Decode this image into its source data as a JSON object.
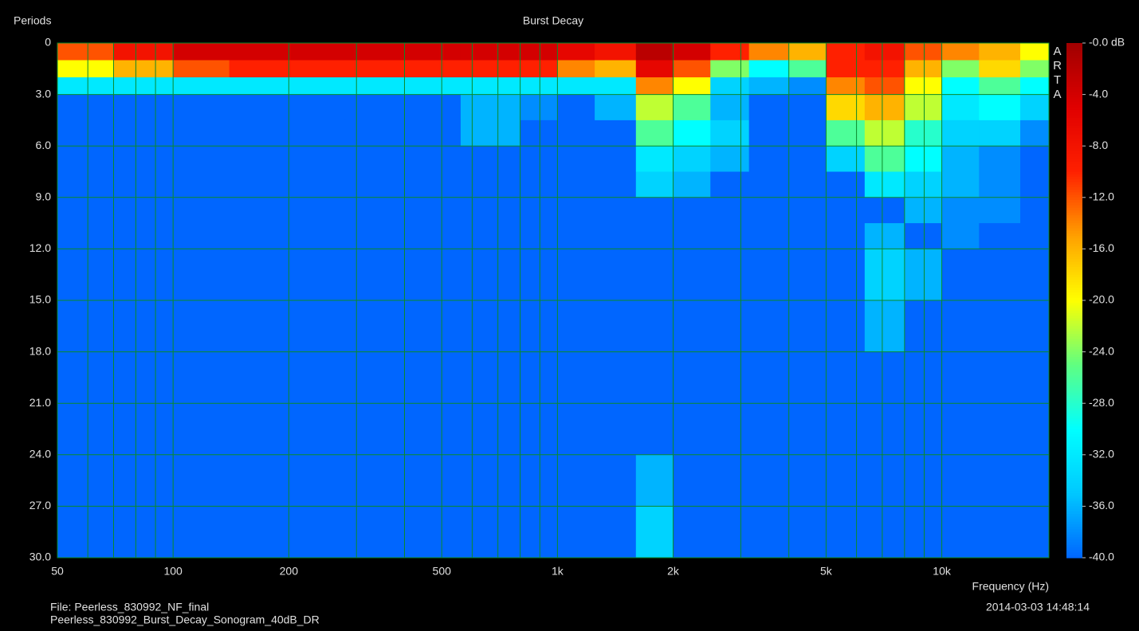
{
  "chart_data": {
    "type": "heatmap",
    "title": "Burst Decay",
    "ylabel": "Periods",
    "xlabel": "Frequency (Hz)",
    "watermark": "ARTA",
    "footer_file": "File: Peerless_830992_NF_final",
    "footer_name": "Peerless_830992_Burst_Decay_Sonogram_40dB_DR",
    "footer_date": "2014-03-03  14:48:14",
    "xlog": true,
    "xlim": [
      50,
      19000
    ],
    "xticks": [
      50,
      100,
      200,
      500,
      {
        "value": 1000,
        "label": "1k"
      },
      {
        "value": 2000,
        "label": "2k"
      },
      {
        "value": 5000,
        "label": "5k"
      },
      {
        "value": 10000,
        "label": "10k"
      }
    ],
    "xminorticks": [
      60,
      70,
      80,
      90,
      300,
      400,
      600,
      700,
      800,
      900,
      3000,
      4000,
      6000,
      7000,
      8000,
      9000
    ],
    "ylim": [
      0,
      30
    ],
    "yreversed": true,
    "yticks": [
      0,
      {
        "value": 3,
        "label": "3.0"
      },
      {
        "value": 6,
        "label": "6.0"
      },
      {
        "value": 9,
        "label": "9.0"
      },
      {
        "value": 12,
        "label": "12.0"
      },
      {
        "value": 15,
        "label": "15.0"
      },
      {
        "value": 18,
        "label": "18.0"
      },
      {
        "value": 21,
        "label": "21.0"
      },
      {
        "value": 24,
        "label": "24.0"
      },
      {
        "value": 27,
        "label": "27.0"
      },
      {
        "value": 30,
        "label": "30.0"
      }
    ],
    "grid": true,
    "grid_color": "#0a8a2a",
    "clim": [
      -40,
      0
    ],
    "cticks": [
      {
        "value": 0,
        "label": "-0.0 dB"
      },
      {
        "value": -4,
        "label": "-4.0"
      },
      {
        "value": -8,
        "label": "-8.0"
      },
      {
        "value": -12,
        "label": "-12.0"
      },
      {
        "value": -16,
        "label": "-16.0"
      },
      {
        "value": -20,
        "label": "-20.0"
      },
      {
        "value": -24,
        "label": "-24.0"
      },
      {
        "value": -28,
        "label": "-28.0"
      },
      {
        "value": -32,
        "label": "-32.0"
      },
      {
        "value": -36,
        "label": "-36.0"
      },
      {
        "value": -40,
        "label": "-40.0"
      }
    ],
    "colormap": [
      "#0066ff",
      "#00c8ff",
      "#00ffff",
      "#60ff80",
      "#ffff00",
      "#ffa000",
      "#ff2000",
      "#e00000",
      "#a00000"
    ],
    "xbins": [
      50,
      70,
      100,
      140,
      200,
      280,
      400,
      560,
      800,
      1000,
      1250,
      1600,
      2000,
      2500,
      3150,
      4000,
      5000,
      6300,
      8000,
      10000,
      12500,
      16000,
      19000
    ],
    "ybins": [
      0,
      1,
      2,
      3,
      4.5,
      6,
      7.5,
      9,
      10.5,
      12,
      15,
      18,
      21,
      24,
      27,
      30
    ],
    "values": [
      [
        -12,
        -8,
        -4,
        -4,
        -4,
        -4,
        -4,
        -4,
        -4,
        -6,
        -8,
        -2,
        -4,
        -10,
        -14,
        -16,
        -10,
        -8,
        -12,
        -14,
        -16,
        -20
      ],
      [
        -20,
        -16,
        -12,
        -10,
        -10,
        -10,
        -10,
        -10,
        -10,
        -14,
        -16,
        -6,
        -12,
        -24,
        -30,
        -26,
        -10,
        -10,
        -16,
        -24,
        -18,
        -24
      ],
      [
        -32,
        -32,
        -32,
        -32,
        -32,
        -32,
        -32,
        -32,
        -32,
        -32,
        -32,
        -14,
        -20,
        -34,
        -36,
        -38,
        -14,
        -12,
        -20,
        -30,
        -26,
        -30
      ],
      [
        -40,
        -40,
        -40,
        -40,
        -40,
        -40,
        -40,
        -36,
        -38,
        -40,
        -36,
        -22,
        -26,
        -36,
        -40,
        -40,
        -18,
        -16,
        -22,
        -32,
        -30,
        -34
      ],
      [
        -40,
        -40,
        -40,
        -40,
        -40,
        -40,
        -40,
        -36,
        -40,
        -40,
        -40,
        -26,
        -30,
        -34,
        -40,
        -40,
        -26,
        -22,
        -28,
        -34,
        -34,
        -38
      ],
      [
        -40,
        -40,
        -40,
        -40,
        -40,
        -40,
        -40,
        -40,
        -40,
        -40,
        -40,
        -32,
        -34,
        -36,
        -40,
        -40,
        -34,
        -26,
        -30,
        -36,
        -38,
        -40
      ],
      [
        -40,
        -40,
        -40,
        -40,
        -40,
        -40,
        -40,
        -40,
        -40,
        -40,
        -40,
        -34,
        -36,
        -40,
        -40,
        -40,
        -40,
        -32,
        -34,
        -36,
        -38,
        -40
      ],
      [
        -40,
        -40,
        -40,
        -40,
        -40,
        -40,
        -40,
        -40,
        -40,
        -40,
        -40,
        -40,
        -40,
        -40,
        -40,
        -40,
        -40,
        -40,
        -36,
        -38,
        -38,
        -40
      ],
      [
        -40,
        -40,
        -40,
        -40,
        -40,
        -40,
        -40,
        -40,
        -40,
        -40,
        -40,
        -40,
        -40,
        -40,
        -40,
        -40,
        -40,
        -36,
        -40,
        -38,
        -40,
        -40
      ],
      [
        -40,
        -40,
        -40,
        -40,
        -40,
        -40,
        -40,
        -40,
        -40,
        -40,
        -40,
        -40,
        -40,
        -40,
        -40,
        -40,
        -40,
        -34,
        -36,
        -40,
        -40,
        -40
      ],
      [
        -40,
        -40,
        -40,
        -40,
        -40,
        -40,
        -40,
        -40,
        -40,
        -40,
        -40,
        -40,
        -40,
        -40,
        -40,
        -40,
        -40,
        -36,
        -40,
        -40,
        -40,
        -40
      ],
      [
        -40,
        -40,
        -40,
        -40,
        -40,
        -40,
        -40,
        -40,
        -40,
        -40,
        -40,
        -40,
        -40,
        -40,
        -40,
        -40,
        -40,
        -40,
        -40,
        -40,
        -40,
        -40
      ],
      [
        -40,
        -40,
        -40,
        -40,
        -40,
        -40,
        -40,
        -40,
        -40,
        -40,
        -40,
        -40,
        -40,
        -40,
        -40,
        -40,
        -40,
        -40,
        -40,
        -40,
        -40,
        -40
      ],
      [
        -40,
        -40,
        -40,
        -40,
        -40,
        -40,
        -40,
        -40,
        -40,
        -40,
        -40,
        -36,
        -40,
        -40,
        -40,
        -40,
        -40,
        -40,
        -40,
        -40,
        -40,
        -40
      ],
      [
        -40,
        -40,
        -40,
        -40,
        -40,
        -40,
        -40,
        -40,
        -40,
        -40,
        -40,
        -34,
        -40,
        -40,
        -40,
        -40,
        -40,
        -40,
        -40,
        -40,
        -40,
        -40
      ]
    ]
  }
}
